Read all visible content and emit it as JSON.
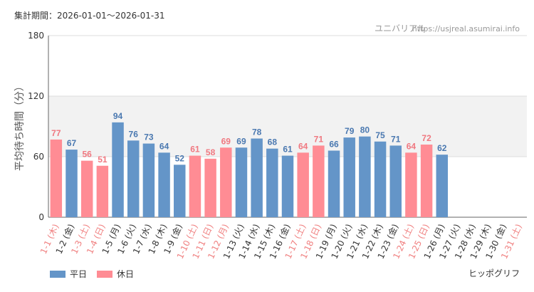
{
  "header": {
    "period": "集計期間：2026-01-01～2026-01-31",
    "site": "ユニバリアル",
    "url": "https://usjreal.asumirai.info",
    "attraction": "ヒッポグリフ"
  },
  "chart_data": {
    "type": "bar",
    "y_label": "平均待ち時間（分）",
    "categories": [
      "1-1 (木)",
      "1-2 (金)",
      "1-3 (土)",
      "1-4 (日)",
      "1-5 (月)",
      "1-6 (火)",
      "1-7 (水)",
      "1-8 (木)",
      "1-9 (金)",
      "1-10 (土)",
      "1-11 (日)",
      "1-12 (月)",
      "1-13 (火)",
      "1-14 (水)",
      "1-15 (木)",
      "1-16 (金)",
      "1-17 (土)",
      "1-18 (日)",
      "1-19 (月)",
      "1-20 (火)",
      "1-21 (水)",
      "1-22 (木)",
      "1-23 (金)",
      "1-24 (土)",
      "1-25 (日)",
      "1-26 (月)",
      "1-27 (火)",
      "1-28 (水)",
      "1-29 (木)",
      "1-30 (金)",
      "1-31 (土)"
    ],
    "category_colors": [
      "#f08080",
      "#333333",
      "#f08080",
      "#f08080",
      "#333333",
      "#333333",
      "#333333",
      "#333333",
      "#333333",
      "#f08080",
      "#f08080",
      "#f08080",
      "#333333",
      "#333333",
      "#333333",
      "#333333",
      "#f08080",
      "#f08080",
      "#333333",
      "#333333",
      "#333333",
      "#333333",
      "#333333",
      "#f08080",
      "#f08080",
      "#333333",
      "#333333",
      "#333333",
      "#333333",
      "#333333",
      "#f08080"
    ],
    "series": [
      {
        "name": "平日",
        "color": "#6495c8",
        "label_color": "#4a78b0",
        "values": [
          null,
          67,
          null,
          null,
          94,
          76,
          73,
          64,
          52,
          null,
          null,
          null,
          69,
          78,
          68,
          61,
          null,
          null,
          66,
          79,
          80,
          75,
          71,
          null,
          null,
          62,
          null,
          null,
          null,
          null,
          null
        ]
      },
      {
        "name": "休日",
        "color": "#ff8c94",
        "label_color": "#f07880",
        "values": [
          77,
          null,
          56,
          51,
          null,
          null,
          null,
          null,
          null,
          61,
          58,
          69,
          null,
          null,
          null,
          null,
          64,
          71,
          null,
          null,
          null,
          null,
          null,
          64,
          72,
          null,
          null,
          null,
          null,
          null,
          null
        ]
      }
    ],
    "ylim": [
      0,
      180
    ],
    "yticks": [
      0,
      60,
      120,
      180
    ],
    "grid": true
  }
}
